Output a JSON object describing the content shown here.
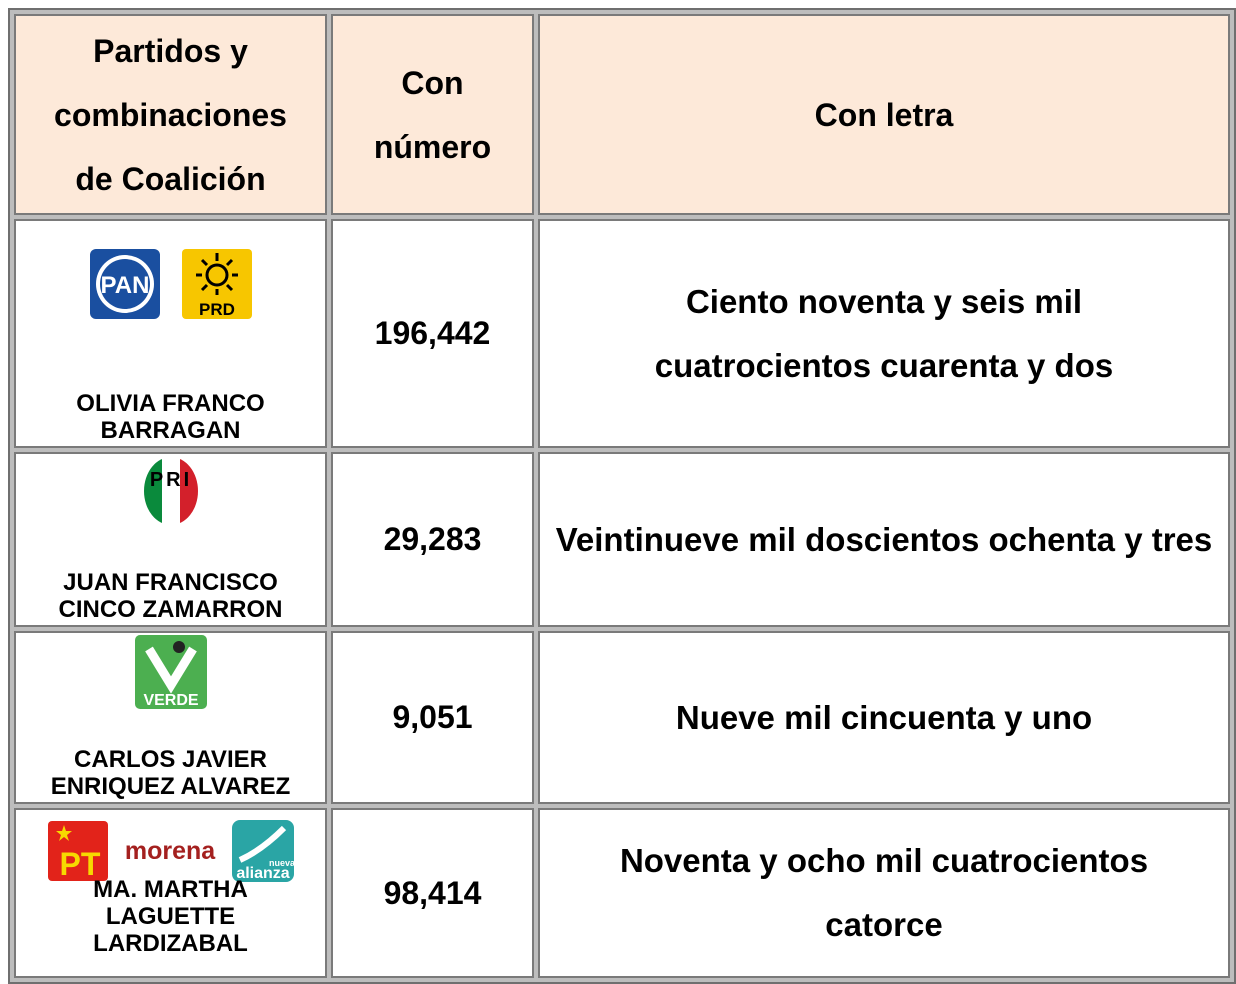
{
  "table": {
    "header": [
      "Partidos y combinaciones de Coalición",
      "Con número",
      "Con letra"
    ],
    "rows": [
      {
        "logos": [
          "PAN",
          "PRD"
        ],
        "candidate": "OLIVIA FRANCO BARRAGAN",
        "number": "196,442",
        "words": "Ciento noventa y seis mil cuatrocientos cuarenta y dos"
      },
      {
        "logos": [
          "PRI"
        ],
        "candidate": "JUAN FRANCISCO CINCO ZAMARRON",
        "number": "29,283",
        "words": "Veintinueve mil doscientos ochenta y tres"
      },
      {
        "logos": [
          "VERDE"
        ],
        "candidate": "CARLOS JAVIER ENRIQUEZ ALVAREZ",
        "number": "9,051",
        "words": "Nueve mil cincuenta y uno"
      },
      {
        "logos": [
          "PT",
          "morena",
          "nueva",
          "alianza"
        ],
        "candidate": "MA. MARTHA LAGUETTE LARDIZABAL",
        "number": "98,414",
        "words": "Noventa y ocho mil cuatrocientos catorce"
      }
    ]
  }
}
